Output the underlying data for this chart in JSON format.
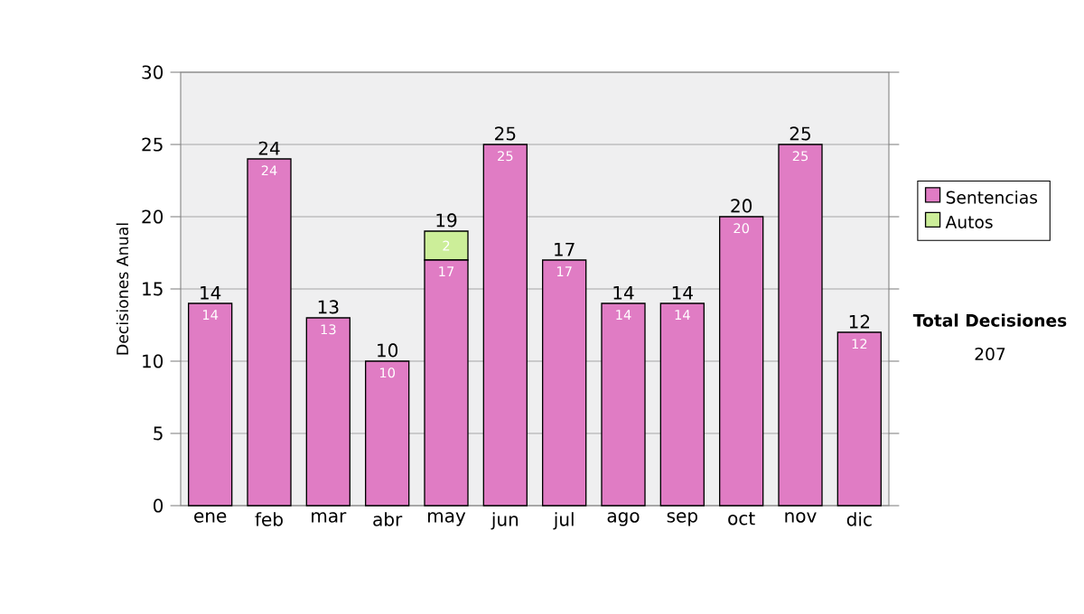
{
  "chart_data": {
    "type": "bar",
    "stacked": true,
    "ylabel": "Decisiones Anual",
    "categories": [
      "ene",
      "feb",
      "mar",
      "abr",
      "may",
      "jun",
      "jul",
      "ago",
      "sep",
      "oct",
      "nov",
      "dic"
    ],
    "series": [
      {
        "name": "Sentencias",
        "color": "#e07cc4",
        "values": [
          14,
          24,
          13,
          10,
          17,
          25,
          17,
          14,
          14,
          20,
          25,
          12
        ],
        "value_labels": [
          "14",
          "24",
          "13",
          "10",
          "17",
          "25",
          "17",
          "14",
          "14",
          "20",
          "25",
          "12"
        ]
      },
      {
        "name": "Autos",
        "color": "#ccee99",
        "values": [
          0,
          0,
          0,
          0,
          2,
          0,
          0,
          0,
          0,
          0,
          0,
          0
        ],
        "value_labels": [
          null,
          null,
          null,
          null,
          "2",
          null,
          null,
          null,
          null,
          null,
          null,
          null
        ]
      }
    ],
    "totals": [
      "14",
      "24",
      "13",
      "10",
      "19",
      "25",
      "17",
      "14",
      "14",
      "20",
      "25",
      "12"
    ],
    "ylim": [
      0,
      30
    ],
    "yticks": [
      0,
      5,
      10,
      15,
      20,
      25,
      30
    ],
    "grid": "y",
    "legend": "right",
    "annotations": [
      "Total Decisiones",
      "207"
    ]
  }
}
